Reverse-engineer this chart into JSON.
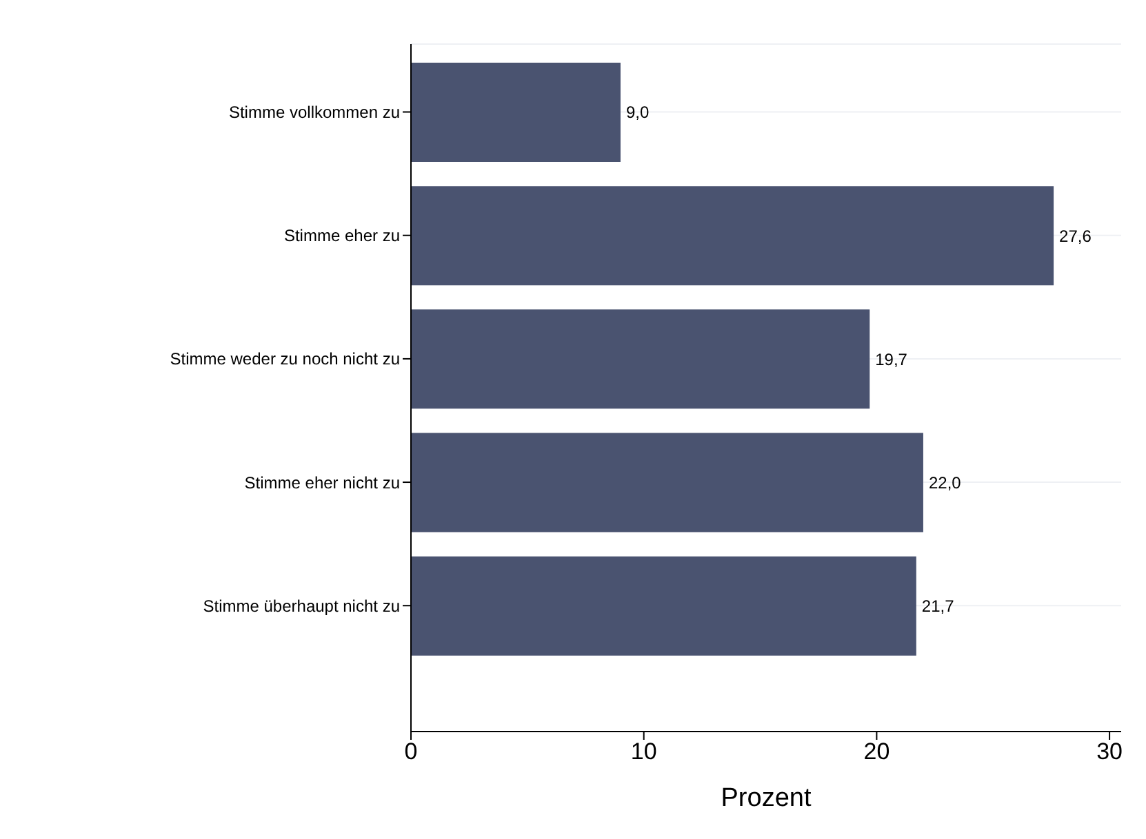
{
  "chart_data": {
    "type": "bar",
    "orientation": "horizontal",
    "xlabel": "Prozent",
    "categories": [
      "Stimme vollkommen zu",
      "Stimme eher zu",
      "Stimme weder zu noch nicht zu",
      "Stimme eher nicht zu",
      "Stimme überhaupt nicht zu"
    ],
    "values": [
      9.0,
      27.6,
      19.7,
      22.0,
      21.7
    ],
    "value_labels": [
      "9,0",
      "27,6",
      "19,7",
      "22,0",
      "21,7"
    ],
    "color": "#4a5370",
    "xlim": [
      0,
      30.5
    ],
    "xticks": [
      0,
      10,
      20,
      30
    ],
    "grid": "y"
  }
}
